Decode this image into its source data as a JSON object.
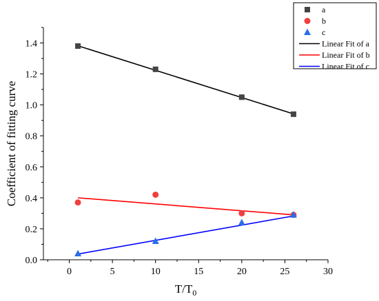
{
  "chart_data": {
    "type": "scatter",
    "xlabel": "T/T",
    "xlabel_subscript": "0",
    "ylabel": "Coefficient of fitting curve",
    "xlim": [
      -3,
      30
    ],
    "ylim": [
      0.0,
      1.5
    ],
    "xticks": [
      0,
      5,
      10,
      15,
      20,
      25,
      30
    ],
    "xtick_labels": [
      "0",
      "5",
      "10",
      "15",
      "20",
      "25",
      "30"
    ],
    "yticks": [
      0.0,
      0.2,
      0.4,
      0.6,
      0.8,
      1.0,
      1.2,
      1.4
    ],
    "ytick_labels": [
      "0.0",
      "0.2",
      "0.4",
      "0.6",
      "0.8",
      "1.0",
      "1.2",
      "1.4"
    ],
    "grid": false,
    "legend_position": "top-right outside",
    "series": [
      {
        "name": "a",
        "marker": "square",
        "color": "#444444",
        "x": [
          1,
          10,
          20,
          26
        ],
        "y": [
          1.38,
          1.23,
          1.05,
          0.94
        ]
      },
      {
        "name": "b",
        "marker": "circle",
        "color": "#f04040",
        "x": [
          1,
          10,
          20,
          26
        ],
        "y": [
          0.37,
          0.42,
          0.3,
          0.29
        ]
      },
      {
        "name": "c",
        "marker": "triangle",
        "color": "#2a6ee8",
        "x": [
          1,
          10,
          20,
          26
        ],
        "y": [
          0.04,
          0.12,
          0.24,
          0.29
        ]
      }
    ],
    "fits": [
      {
        "name": "Linear Fit of a",
        "color": "#000000",
        "x": [
          1,
          26
        ],
        "y": [
          1.382,
          0.942
        ]
      },
      {
        "name": "Linear Fit of b",
        "color": "#ff0000",
        "x": [
          1,
          26
        ],
        "y": [
          0.4,
          0.29
        ]
      },
      {
        "name": "Linear Fit of c",
        "color": "#0000ff",
        "x": [
          1,
          26
        ],
        "y": [
          0.037,
          0.283
        ]
      }
    ]
  }
}
